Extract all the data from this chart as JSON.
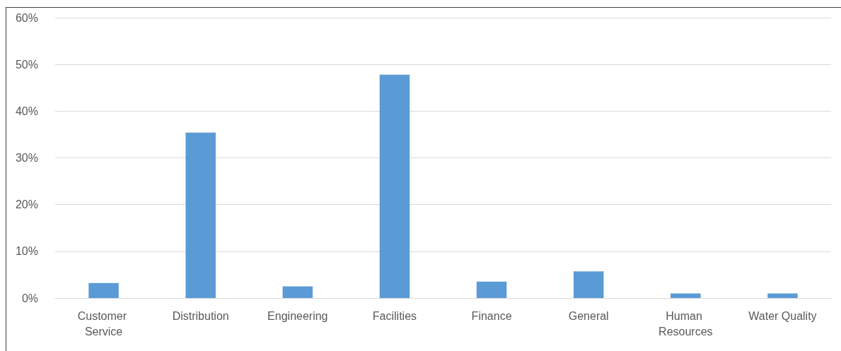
{
  "chart_data": {
    "type": "bar",
    "categories": [
      "Customer Service",
      "Distribution",
      "Engineering",
      "Facilities",
      "Finance",
      "General",
      "Human Resources",
      "Water Quality"
    ],
    "values": [
      3.2,
      35.4,
      2.5,
      47.8,
      3.5,
      5.7,
      1.0,
      1.0
    ],
    "color": "#5b9bd5",
    "ylim": [
      0,
      60
    ],
    "yticks": [
      {
        "value": 0,
        "label": "0%"
      },
      {
        "value": 10,
        "label": "10%"
      },
      {
        "value": 20,
        "label": "20%"
      },
      {
        "value": 30,
        "label": "30%"
      },
      {
        "value": 40,
        "label": "40%"
      },
      {
        "value": 50,
        "label": "50%"
      },
      {
        "value": 60,
        "label": "60%"
      }
    ],
    "grid": "y"
  }
}
